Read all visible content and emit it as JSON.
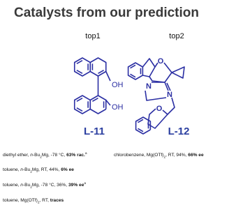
{
  "title": "Catalysts from our prediction",
  "catalysts": [
    {
      "rank": "top1",
      "groups": [
        "OH",
        "OH"
      ],
      "name": "L-11"
    },
    {
      "rank": "top2",
      "atoms": [
        "O",
        "N",
        "N",
        "O"
      ],
      "name": "L-12"
    }
  ],
  "conditions": {
    "left": [
      [
        "diethyl ether, ",
        "n",
        "-Bu",
        "2",
        "Mg, -78 °C, ",
        "63% rac.",
        "a"
      ],
      [
        "toluene, ",
        "n",
        "-Bu",
        "2",
        "Mg, RT, 44%, ",
        "6% ee"
      ],
      [
        "toluene, ",
        "n",
        "-Bu",
        "2",
        "Mg, -78 °C, 36%, ",
        "39% ee",
        "a"
      ],
      [
        "toluene, Mg(OTf)",
        "2",
        ", RT, ",
        "traces"
      ]
    ],
    "right": [
      [
        "chlorobenzene, Mg(OTf)",
        "2",
        ", RT, 94%, ",
        "66% ee"
      ]
    ]
  }
}
